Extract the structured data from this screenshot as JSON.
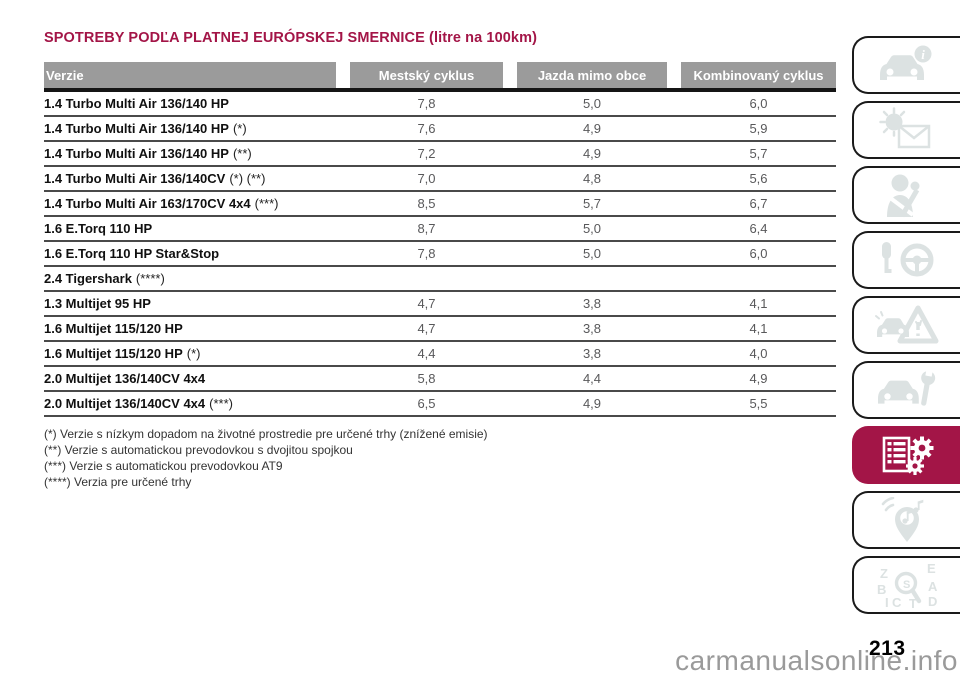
{
  "page_title": "SPOTREBY PODĽA PLATNEJ EURÓPSKEJ SMERNICE (litre na 100km)",
  "table": {
    "columns": [
      "Verzie",
      "Mestský cyklus",
      "Jazda mimo obce",
      "Kombinovaný cyklus"
    ],
    "rows": [
      {
        "name": "1.4 Turbo Multi Air 136/140 HP",
        "note": "",
        "urban": "7,8",
        "extra_urban": "5,0",
        "combined": "6,0"
      },
      {
        "name": "1.4 Turbo Multi Air 136/140 HP",
        "note": "(*)",
        "urban": "7,6",
        "extra_urban": "4,9",
        "combined": "5,9"
      },
      {
        "name": "1.4 Turbo Multi Air 136/140 HP",
        "note": "(**)",
        "urban": "7,2",
        "extra_urban": "4,9",
        "combined": "5,7"
      },
      {
        "name": "1.4 Turbo Multi Air 136/140CV",
        "note": "(*) (**)",
        "urban": "7,0",
        "extra_urban": "4,8",
        "combined": "5,6"
      },
      {
        "name": "1.4 Turbo Multi Air 163/170CV 4x4",
        "note": "(***)",
        "urban": "8,5",
        "extra_urban": "5,7",
        "combined": "6,7"
      },
      {
        "name": "1.6 E.Torq 110 HP",
        "note": "",
        "urban": "8,7",
        "extra_urban": "5,0",
        "combined": "6,4"
      },
      {
        "name": "1.6 E.Torq 110 HP Star&Stop",
        "note": "",
        "urban": "7,8",
        "extra_urban": "5,0",
        "combined": "6,0"
      },
      {
        "name": "2.4 Tigershark",
        "note": "(****)",
        "urban": "",
        "extra_urban": "",
        "combined": ""
      },
      {
        "name": "1.3 Multijet 95 HP",
        "note": "",
        "urban": "4,7",
        "extra_urban": "3,8",
        "combined": "4,1"
      },
      {
        "name": "1.6 Multijet 115/120 HP",
        "note": "",
        "urban": "4,7",
        "extra_urban": "3,8",
        "combined": "4,1"
      },
      {
        "name": "1.6 Multijet 115/120 HP",
        "note": "(*)",
        "urban": "4,4",
        "extra_urban": "3,8",
        "combined": "4,0"
      },
      {
        "name": "2.0 Multijet 136/140CV 4x4",
        "note": "",
        "urban": "5,8",
        "extra_urban": "4,4",
        "combined": "4,9"
      },
      {
        "name": "2.0 Multijet 136/140CV 4x4",
        "note": "(***)",
        "urban": "6,5",
        "extra_urban": "4,9",
        "combined": "5,5"
      }
    ]
  },
  "footnotes": [
    "(*) Verzie s nízkym dopadom na životné prostredie pre určené trhy (znížené emisie)",
    "(**) Verzie s automatickou prevodovkou s dvojitou spojkou",
    "(***) Verzie s automatickou prevodovkou AT9",
    "(****) Verzia pre určené trhy"
  ],
  "sidebar": {
    "tabs": [
      {
        "icon": "car-info-icon",
        "active": false
      },
      {
        "icon": "warning-light-message-icon",
        "active": false
      },
      {
        "icon": "safety-seatbelt-icon",
        "active": false
      },
      {
        "icon": "key-steering-wheel-icon",
        "active": false
      },
      {
        "icon": "emergency-warning-triangle-icon",
        "active": false
      },
      {
        "icon": "car-maintenance-wrench-icon",
        "active": false
      },
      {
        "icon": "technical-data-gears-icon",
        "active": true
      },
      {
        "icon": "multimedia-pin-music-icon",
        "active": false
      },
      {
        "icon": "alphabetical-index-search-icon",
        "active": false
      }
    ]
  },
  "page_number": "213",
  "watermark": "carmanualsonline.info",
  "colors": {
    "accent": "#A31547",
    "header_bg": "#9B9B9B",
    "value_text": "#58585A",
    "icon_gray": "#DCE2E2"
  }
}
